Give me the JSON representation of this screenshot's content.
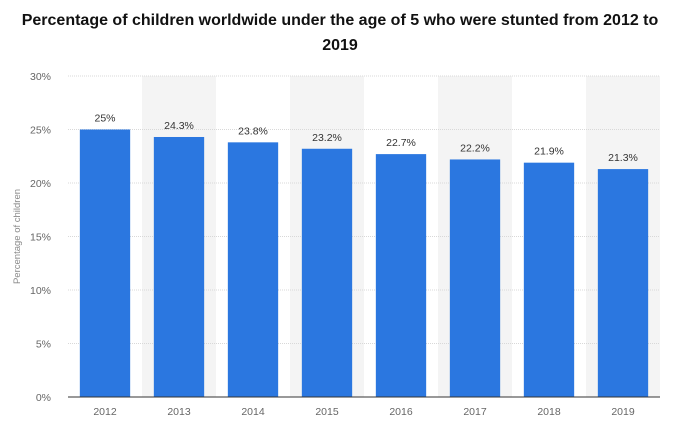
{
  "chart_data": {
    "type": "bar",
    "title_lines": [
      "Percentage of children worldwide under the age of 5 who were stunted from 2012 to",
      "2019"
    ],
    "ylabel": "Percentage of children",
    "xlabel": "",
    "categories": [
      "2012",
      "2013",
      "2014",
      "2015",
      "2016",
      "2017",
      "2018",
      "2019"
    ],
    "values": [
      25,
      24.3,
      23.8,
      23.2,
      22.7,
      22.2,
      21.9,
      21.3
    ],
    "value_labels": [
      "25%",
      "24.3%",
      "23.8%",
      "23.2%",
      "22.7%",
      "22.2%",
      "21.9%",
      "21.3%"
    ],
    "ylim": [
      0,
      30
    ],
    "yticks": [
      0,
      5,
      10,
      15,
      20,
      25,
      30
    ],
    "ytick_labels": [
      "0%",
      "5%",
      "10%",
      "15%",
      "20%",
      "25%",
      "30%"
    ],
    "grid": true,
    "colors": {
      "bar": "#2b77e0",
      "band": "#f4f4f4",
      "grid": "#d8d8d8",
      "axis": "#333333"
    }
  }
}
